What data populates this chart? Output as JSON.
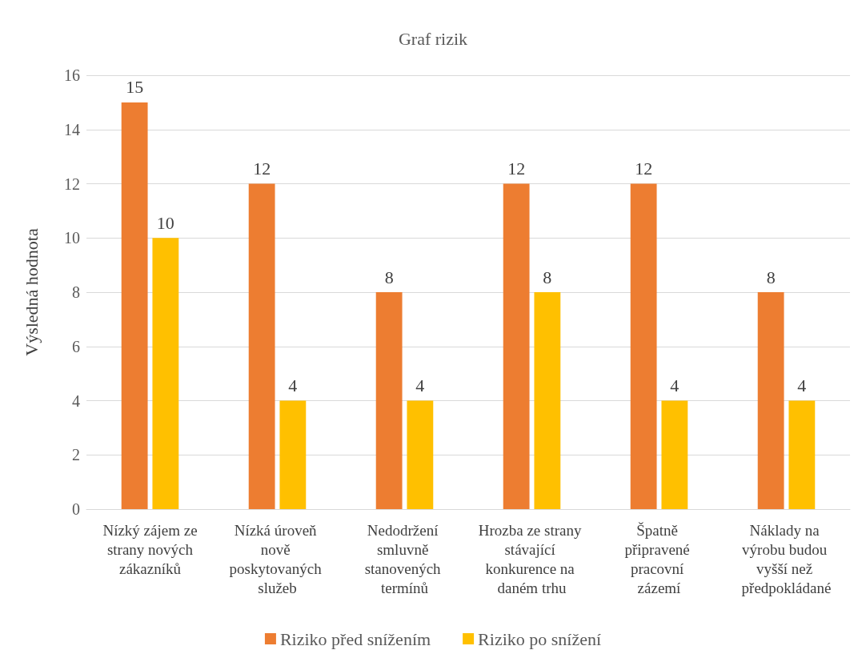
{
  "chart_data": {
    "type": "bar",
    "title": "Graf rizik",
    "ylabel": "Výsledná hodnota",
    "categories": [
      "Nízký zájem ze strany nových zákazníků",
      "Nízká úroveň nově poskytovaných služeb",
      "Nedodržení smluvně stanovených termínů",
      "Hrozba ze strany stávající konkurence na daném trhu",
      "Špatně připravené pracovní zázemí",
      "Náklady na výrobu budou vyšší než předpokládané"
    ],
    "series": [
      {
        "name": "Riziko před snížením",
        "color": "#ed7d31",
        "values": [
          15,
          12,
          8,
          12,
          12,
          8
        ]
      },
      {
        "name": "Riziko po snížení",
        "color": "#ffc000",
        "values": [
          10,
          4,
          4,
          8,
          4,
          4
        ]
      }
    ],
    "ylim": [
      0,
      16
    ],
    "yticks": [
      0,
      2,
      4,
      6,
      8,
      10,
      12,
      14,
      16
    ],
    "grid": "y",
    "legend": "bottom",
    "data_labels": true
  }
}
